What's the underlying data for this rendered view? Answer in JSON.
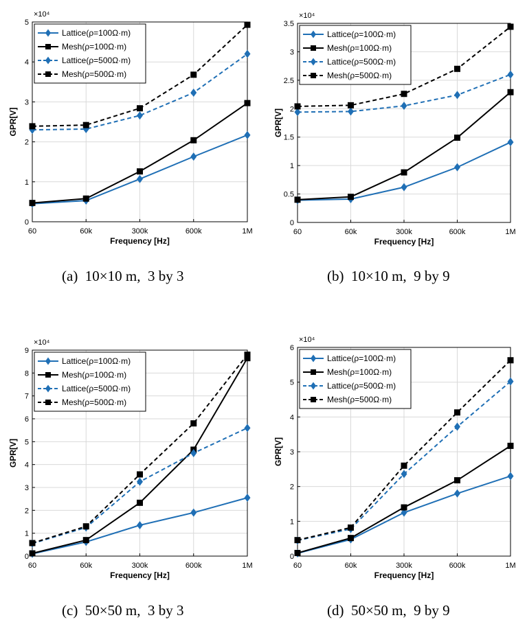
{
  "captions": [
    "(a)  10×10 m,  3 by 3",
    "(b)  10×10 m,  9 by 9",
    "(c)  50×50 m,  3 by 3",
    "(d)  50×50 m,  9 by 9"
  ],
  "colors": {
    "lattice": "#1f6fb5",
    "mesh": "#000000",
    "grid": "#d9d9d9"
  },
  "chart_data": [
    {
      "type": "line",
      "categories": [
        "60",
        "60k",
        "300k",
        "600k",
        "1M"
      ],
      "xlabel": "Frequency [Hz]",
      "ylabel": "GPR[V]",
      "exponent_label": "×10⁴",
      "ylim": [
        0,
        5
      ],
      "yticks": [
        "0",
        "1",
        "2",
        "3",
        "4",
        "5"
      ],
      "grid": true,
      "legend_position": "top-left",
      "series": [
        {
          "name": "Lattice(ρ=100Ω·m)",
          "marker": "diamond",
          "dash": "solid",
          "color": "lattice",
          "values": [
            0.45,
            0.53,
            1.07,
            1.63,
            2.17
          ]
        },
        {
          "name": "Mesh(ρ=100Ω·m)",
          "marker": "square",
          "dash": "solid",
          "color": "mesh",
          "values": [
            0.47,
            0.58,
            1.26,
            2.04,
            2.97
          ]
        },
        {
          "name": "Lattice(ρ=500Ω·m)",
          "marker": "diamond",
          "dash": "dashed",
          "color": "lattice",
          "values": [
            2.3,
            2.32,
            2.66,
            3.23,
            4.2
          ]
        },
        {
          "name": "Mesh(ρ=500Ω·m)",
          "marker": "square",
          "dash": "dashed",
          "color": "mesh",
          "values": [
            2.39,
            2.42,
            2.84,
            3.68,
            4.93
          ]
        }
      ]
    },
    {
      "type": "line",
      "categories": [
        "60",
        "60k",
        "300k",
        "600k",
        "1M"
      ],
      "xlabel": "Frequency [Hz]",
      "ylabel": "GPR[V]",
      "exponent_label": "×10⁴",
      "ylim": [
        0,
        3.5
      ],
      "yticks": [
        "0",
        "0.5",
        "1",
        "1.5",
        "2",
        "2.5",
        "3",
        "3.5"
      ],
      "grid": true,
      "legend_position": "top-left",
      "series": [
        {
          "name": "Lattice(ρ=100Ω·m)",
          "marker": "diamond",
          "dash": "solid",
          "color": "lattice",
          "values": [
            0.39,
            0.41,
            0.62,
            0.97,
            1.41
          ]
        },
        {
          "name": "Mesh(ρ=100Ω·m)",
          "marker": "square",
          "dash": "solid",
          "color": "mesh",
          "values": [
            0.4,
            0.45,
            0.88,
            1.49,
            2.29
          ]
        },
        {
          "name": "Lattice(ρ=500Ω·m)",
          "marker": "diamond",
          "dash": "dashed",
          "color": "lattice",
          "values": [
            1.94,
            1.95,
            2.05,
            2.24,
            2.6
          ]
        },
        {
          "name": "Mesh(ρ=500Ω·m)",
          "marker": "square",
          "dash": "dashed",
          "color": "mesh",
          "values": [
            2.04,
            2.06,
            2.26,
            2.7,
            3.44
          ]
        }
      ]
    },
    {
      "type": "line",
      "categories": [
        "60",
        "60k",
        "300k",
        "600k",
        "1M"
      ],
      "xlabel": "Frequency [Hz]",
      "ylabel": "GPR[V]",
      "exponent_label": "×10⁴",
      "ylim": [
        0,
        9
      ],
      "yticks": [
        "0",
        "1",
        "2",
        "3",
        "4",
        "5",
        "6",
        "7",
        "8",
        "9"
      ],
      "grid": true,
      "legend_position": "top-left",
      "series": [
        {
          "name": "Lattice(ρ=100Ω·m)",
          "marker": "diamond",
          "dash": "solid",
          "color": "lattice",
          "values": [
            0.1,
            0.62,
            1.35,
            1.9,
            2.55
          ]
        },
        {
          "name": "Mesh(ρ=100Ω·m)",
          "marker": "square",
          "dash": "solid",
          "color": "mesh",
          "values": [
            0.12,
            0.7,
            2.33,
            4.65,
            8.65
          ]
        },
        {
          "name": "Lattice(ρ=500Ω·m)",
          "marker": "diamond",
          "dash": "dashed",
          "color": "lattice",
          "values": [
            0.55,
            1.25,
            3.25,
            4.5,
            5.6
          ]
        },
        {
          "name": "Mesh(ρ=500Ω·m)",
          "marker": "square",
          "dash": "dashed",
          "color": "mesh",
          "values": [
            0.57,
            1.3,
            3.57,
            5.8,
            8.8
          ]
        }
      ]
    },
    {
      "type": "line",
      "categories": [
        "60",
        "60k",
        "300k",
        "600k",
        "1M"
      ],
      "xlabel": "Frequency [Hz]",
      "ylabel": "GPR[V]",
      "exponent_label": "×10⁴",
      "ylim": [
        0,
        6
      ],
      "yticks": [
        "0",
        "1",
        "2",
        "3",
        "4",
        "5",
        "6"
      ],
      "grid": true,
      "legend_position": "top-left",
      "series": [
        {
          "name": "Lattice(ρ=100Ω·m)",
          "marker": "diamond",
          "dash": "solid",
          "color": "lattice",
          "values": [
            0.08,
            0.48,
            1.25,
            1.8,
            2.3
          ]
        },
        {
          "name": "Mesh(ρ=100Ω·m)",
          "marker": "square",
          "dash": "solid",
          "color": "mesh",
          "values": [
            0.09,
            0.52,
            1.4,
            2.18,
            3.17
          ]
        },
        {
          "name": "Lattice(ρ=500Ω·m)",
          "marker": "diamond",
          "dash": "dashed",
          "color": "lattice",
          "values": [
            0.45,
            0.78,
            2.36,
            3.72,
            5.02
          ]
        },
        {
          "name": "Mesh(ρ=500Ω·m)",
          "marker": "square",
          "dash": "dashed",
          "color": "mesh",
          "values": [
            0.46,
            0.82,
            2.6,
            4.13,
            5.63
          ]
        }
      ]
    }
  ]
}
